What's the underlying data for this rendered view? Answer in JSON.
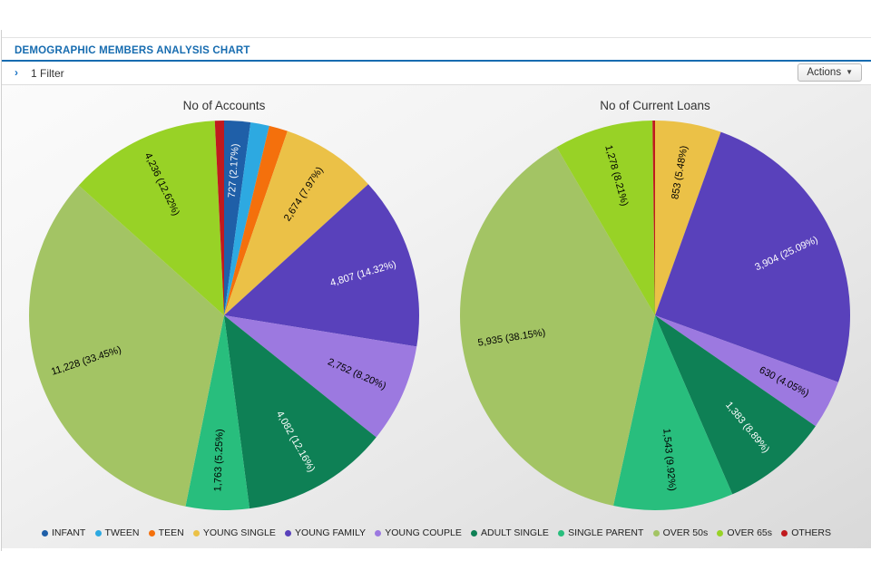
{
  "panel": {
    "title": "DEMOGRAPHIC MEMBERS ANALYSIS CHART",
    "filter_chevron": "›",
    "filter_label": "1 Filter",
    "actions_label": "Actions",
    "actions_caret": "▼",
    "accent_color": "#176CB0"
  },
  "chart_data": [
    {
      "type": "pie",
      "title": "No of Accounts",
      "slices": [
        {
          "category": "INFANT",
          "label": "727 (2.17%)",
          "value": 727,
          "percent": 2.17,
          "color": "#1F5FA8",
          "label_color": "#FFFFFF"
        },
        {
          "category": "TWEEN",
          "label": null,
          "value": null,
          "percent": 1.55,
          "color": "#2DA9E1",
          "label_color": "#000000"
        },
        {
          "category": "TEEN",
          "label": null,
          "value": null,
          "percent": 1.55,
          "color": "#F4700C",
          "label_color": "#000000"
        },
        {
          "category": "YOUNG SINGLE",
          "label": "2,674 (7.97%)",
          "value": 2674,
          "percent": 7.97,
          "color": "#EBC147",
          "label_color": "#000000"
        },
        {
          "category": "YOUNG FAMILY",
          "label": "4,807 (14.32%)",
          "value": 4807,
          "percent": 14.32,
          "color": "#5941BB",
          "label_color": "#FFFFFF"
        },
        {
          "category": "YOUNG COUPLE",
          "label": "2,752 (8.20%)",
          "value": 2752,
          "percent": 8.2,
          "color": "#9C79E0",
          "label_color": "#000000"
        },
        {
          "category": "ADULT SINGLE",
          "label": "4,082 (12.16%)",
          "value": 4082,
          "percent": 12.16,
          "color": "#0E8055",
          "label_color": "#FFFFFF"
        },
        {
          "category": "SINGLE PARENT",
          "label": "1,763 (5.25%)",
          "value": 1763,
          "percent": 5.25,
          "color": "#28BE7D",
          "label_color": "#000000"
        },
        {
          "category": "OVER 50s",
          "label": "11,228 (33.45%)",
          "value": 11228,
          "percent": 33.45,
          "color": "#A3C464",
          "label_color": "#000000"
        },
        {
          "category": "OVER 65s",
          "label": "4,236 (12.62%)",
          "value": 4236,
          "percent": 12.62,
          "color": "#98D226",
          "label_color": "#000000"
        },
        {
          "category": "OTHERS",
          "label": null,
          "value": null,
          "percent": 0.76,
          "color": "#C01A1E",
          "label_color": "#FFFFFF"
        }
      ]
    },
    {
      "type": "pie",
      "title": "No of Current Loans",
      "slices": [
        {
          "category": "YOUNG SINGLE",
          "label": "853 (5.48%)",
          "value": 853,
          "percent": 5.48,
          "color": "#EBC147",
          "label_color": "#000000"
        },
        {
          "category": "YOUNG FAMILY",
          "label": "3,904 (25.09%)",
          "value": 3904,
          "percent": 25.09,
          "color": "#5941BB",
          "label_color": "#FFFFFF"
        },
        {
          "category": "YOUNG COUPLE",
          "label": "630 (4.05%)",
          "value": 630,
          "percent": 4.05,
          "color": "#9C79E0",
          "label_color": "#000000"
        },
        {
          "category": "ADULT SINGLE",
          "label": "1,383 (8.89%)",
          "value": 1383,
          "percent": 8.89,
          "color": "#0E8055",
          "label_color": "#FFFFFF"
        },
        {
          "category": "SINGLE PARENT",
          "label": "1,543 (9.92%)",
          "value": 1543,
          "percent": 9.92,
          "color": "#28BE7D",
          "label_color": "#000000"
        },
        {
          "category": "OVER 50s",
          "label": "5,935 (38.15%)",
          "value": 5935,
          "percent": 38.15,
          "color": "#A3C464",
          "label_color": "#000000"
        },
        {
          "category": "OVER 65s",
          "label": "1,278 (8.21%)",
          "value": 1278,
          "percent": 8.21,
          "color": "#98D226",
          "label_color": "#000000"
        },
        {
          "category": "OTHERS",
          "label": null,
          "value": null,
          "percent": 0.21,
          "color": "#C01A1E",
          "label_color": "#FFFFFF"
        }
      ]
    }
  ],
  "legend": [
    {
      "label": "INFANT",
      "color": "#1F5FA8"
    },
    {
      "label": "TWEEN",
      "color": "#2DA9E1"
    },
    {
      "label": "TEEN",
      "color": "#F4700C"
    },
    {
      "label": "YOUNG SINGLE",
      "color": "#EBC147"
    },
    {
      "label": "YOUNG FAMILY",
      "color": "#5941BB"
    },
    {
      "label": "YOUNG COUPLE",
      "color": "#9C79E0"
    },
    {
      "label": "ADULT SINGLE",
      "color": "#0E8055"
    },
    {
      "label": "SINGLE PARENT",
      "color": "#28BE7D"
    },
    {
      "label": "OVER 50s",
      "color": "#A3C464"
    },
    {
      "label": "OVER 65s",
      "color": "#98D226"
    },
    {
      "label": "OTHERS",
      "color": "#C01A1E"
    }
  ]
}
